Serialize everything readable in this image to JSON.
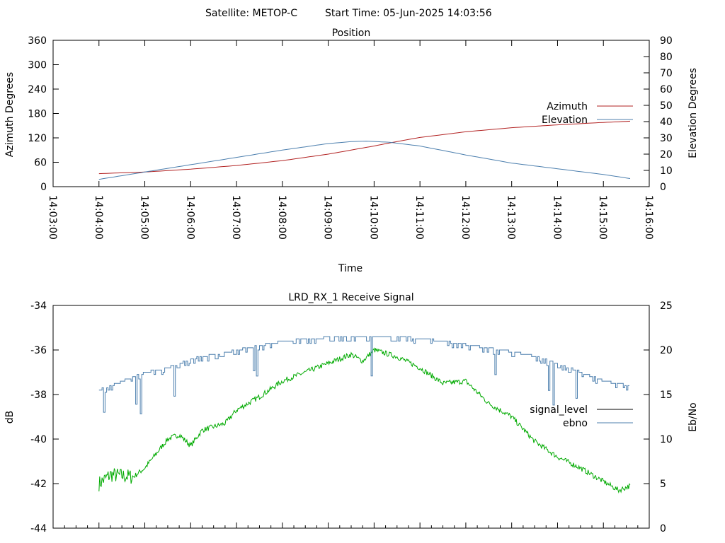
{
  "header": {
    "satellite": "Satellite: METOP-C",
    "start_time": "Start Time: 05-Jun-2025 14:03:56"
  },
  "chart_data": [
    {
      "type": "line",
      "title": "Position",
      "xlabel": "Time",
      "ylabel": "Azimuth Degrees",
      "y2label": "Elevation Degrees",
      "xlim": [
        "14:03:00",
        "14:16:00"
      ],
      "ylim": [
        0,
        360
      ],
      "y2lim": [
        0,
        90
      ],
      "x_ticks": [
        "14:03:00",
        "14:04:00",
        "14:05:00",
        "14:06:00",
        "14:07:00",
        "14:08:00",
        "14:09:00",
        "14:10:00",
        "14:11:00",
        "14:12:00",
        "14:13:00",
        "14:14:00",
        "14:15:00",
        "14:16:00"
      ],
      "y_ticks": [
        0,
        60,
        120,
        180,
        240,
        300,
        360
      ],
      "y2_ticks": [
        0,
        10,
        20,
        30,
        40,
        50,
        60,
        70,
        80,
        90
      ],
      "legend": "right",
      "series": [
        {
          "name": "Azimuth",
          "axis": "left",
          "color": "#b22222",
          "x": [
            "14:04:00",
            "14:05:00",
            "14:06:00",
            "14:07:00",
            "14:08:00",
            "14:09:00",
            "14:09:30",
            "14:10:00",
            "14:10:30",
            "14:11:00",
            "14:12:00",
            "14:13:00",
            "14:14:00",
            "14:15:00",
            "14:15:35"
          ],
          "y": [
            32,
            36,
            43,
            52,
            64,
            80,
            90,
            100,
            111,
            121,
            135,
            145,
            152,
            158,
            161
          ]
        },
        {
          "name": "Elevation",
          "axis": "right",
          "color": "#4c7fae",
          "x": [
            "14:04:00",
            "14:05:00",
            "14:06:00",
            "14:07:00",
            "14:08:00",
            "14:09:00",
            "14:09:30",
            "14:09:50",
            "14:10:20",
            "14:11:00",
            "14:12:00",
            "14:13:00",
            "14:14:00",
            "14:15:00",
            "14:15:35"
          ],
          "y": [
            4.5,
            9,
            13.5,
            18,
            22.5,
            26.5,
            27.7,
            28,
            27.3,
            25,
            19.5,
            14.5,
            11,
            7.5,
            5
          ]
        }
      ]
    },
    {
      "type": "line",
      "title": "LRD_RX_1 Receive Signal",
      "xlabel": "",
      "ylabel": "dB",
      "y2label": "Eb/No",
      "xlim": [
        "14:03:00",
        "14:16:00"
      ],
      "ylim": [
        -44,
        -34
      ],
      "y2lim": [
        0,
        25
      ],
      "y_ticks": [
        -44,
        -42,
        -40,
        -38,
        -36,
        -34
      ],
      "y2_ticks": [
        0,
        5,
        10,
        15,
        20,
        25
      ],
      "legend": "right",
      "series": [
        {
          "name": "signal_level",
          "axis": "left",
          "color": "#00aa00",
          "legend_color": "#000000",
          "x": [
            "14:04:00",
            "14:04:15",
            "14:04:45",
            "14:05:00",
            "14:05:30",
            "14:05:45",
            "14:06:00",
            "14:06:15",
            "14:06:45",
            "14:07:00",
            "14:07:30",
            "14:08:00",
            "14:08:30",
            "14:09:00",
            "14:09:30",
            "14:09:45",
            "14:10:00",
            "14:10:30",
            "14:11:00",
            "14:11:30",
            "14:12:00",
            "14:12:30",
            "14:13:00",
            "14:13:30",
            "14:14:00",
            "14:14:30",
            "14:15:00",
            "14:15:20",
            "14:15:35"
          ],
          "y": [
            -42,
            -41.6,
            -41.7,
            -41.3,
            -40,
            -39.8,
            -40.3,
            -39.6,
            -39.3,
            -38.7,
            -38.1,
            -37.4,
            -37,
            -36.6,
            -36.2,
            -36.5,
            -36,
            -36.3,
            -36.8,
            -37.5,
            -37.4,
            -38.4,
            -39,
            -40.1,
            -40.8,
            -41.3,
            -41.9,
            -42.3,
            -42.1
          ]
        },
        {
          "name": "ebno",
          "axis": "right",
          "color": "#4c7fae",
          "x": [
            "14:04:00",
            "14:04:30",
            "14:05:00",
            "14:05:30",
            "14:06:00",
            "14:06:30",
            "14:07:00",
            "14:07:30",
            "14:08:00",
            "14:08:30",
            "14:09:00",
            "14:09:30",
            "14:10:00",
            "14:10:30",
            "14:11:00",
            "14:11:30",
            "14:12:00",
            "14:12:30",
            "14:13:00",
            "14:13:30",
            "14:14:00",
            "14:14:30",
            "14:15:00",
            "14:15:35"
          ],
          "y": [
            15.5,
            16.5,
            17.5,
            18,
            19,
            19.5,
            20,
            20.5,
            21,
            21.3,
            21.4,
            21.5,
            21.6,
            21.5,
            21.3,
            21,
            20.6,
            20.2,
            19.8,
            19.3,
            18.5,
            17.5,
            16.5,
            16
          ]
        }
      ]
    }
  ]
}
